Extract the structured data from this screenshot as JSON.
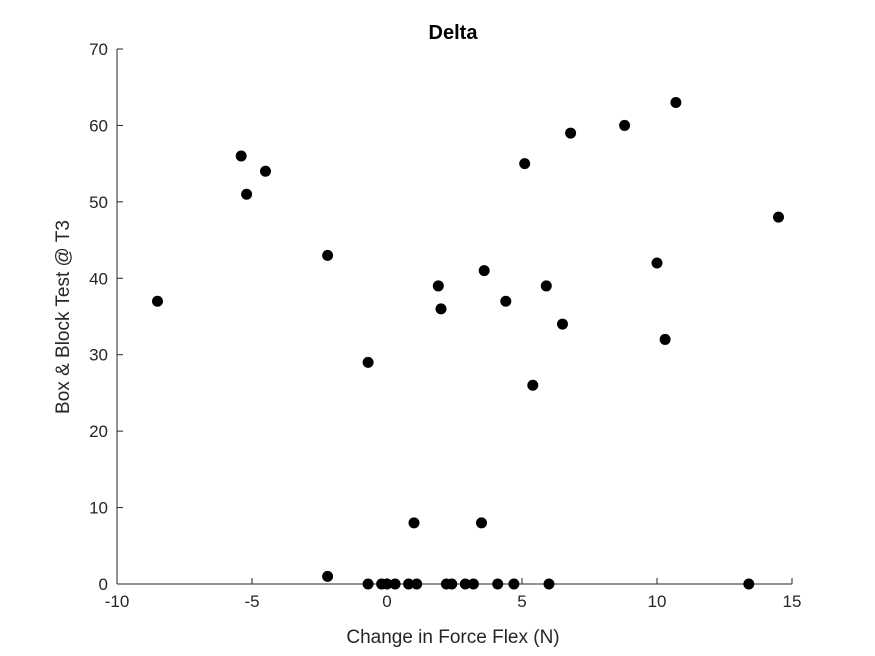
{
  "chart_data": {
    "type": "scatter",
    "title": "Delta",
    "xlabel": "Change in Force Flex (N)",
    "ylabel": "Box & Block Test @ T3",
    "xlim": [
      -10,
      15
    ],
    "ylim": [
      0,
      70
    ],
    "xticks": [
      -10,
      -5,
      0,
      5,
      10,
      15
    ],
    "yticks": [
      0,
      10,
      20,
      30,
      40,
      50,
      60,
      70
    ],
    "xtick_labels": [
      "-10",
      "-5",
      "0",
      "5",
      "10",
      "15"
    ],
    "ytick_labels": [
      "0",
      "10",
      "20",
      "30",
      "40",
      "50",
      "60",
      "70"
    ],
    "marker_color": "#000000",
    "grid": false,
    "series": [
      {
        "points": [
          {
            "x": -8.5,
            "y": 37
          },
          {
            "x": -5.4,
            "y": 56
          },
          {
            "x": -5.2,
            "y": 51
          },
          {
            "x": -4.5,
            "y": 54
          },
          {
            "x": -2.2,
            "y": 43
          },
          {
            "x": -2.2,
            "y": 1
          },
          {
            "x": -0.7,
            "y": 29
          },
          {
            "x": -0.7,
            "y": 0
          },
          {
            "x": -0.2,
            "y": 0
          },
          {
            "x": 0.0,
            "y": 0
          },
          {
            "x": 0.3,
            "y": 0
          },
          {
            "x": 0.8,
            "y": 0
          },
          {
            "x": 1.1,
            "y": 0
          },
          {
            "x": 1.0,
            "y": 8
          },
          {
            "x": 1.9,
            "y": 39
          },
          {
            "x": 2.0,
            "y": 36
          },
          {
            "x": 2.2,
            "y": 0
          },
          {
            "x": 2.4,
            "y": 0
          },
          {
            "x": 2.9,
            "y": 0
          },
          {
            "x": 3.2,
            "y": 0
          },
          {
            "x": 3.6,
            "y": 41
          },
          {
            "x": 3.5,
            "y": 8
          },
          {
            "x": 4.1,
            "y": 0
          },
          {
            "x": 4.4,
            "y": 37
          },
          {
            "x": 4.7,
            "y": 0
          },
          {
            "x": 5.1,
            "y": 55
          },
          {
            "x": 5.4,
            "y": 26
          },
          {
            "x": 5.9,
            "y": 39
          },
          {
            "x": 6.0,
            "y": 0
          },
          {
            "x": 6.5,
            "y": 34
          },
          {
            "x": 6.8,
            "y": 59
          },
          {
            "x": 8.8,
            "y": 60
          },
          {
            "x": 10.0,
            "y": 42
          },
          {
            "x": 10.3,
            "y": 32
          },
          {
            "x": 10.7,
            "y": 63
          },
          {
            "x": 13.4,
            "y": 0
          },
          {
            "x": 14.5,
            "y": 48
          }
        ]
      }
    ]
  }
}
